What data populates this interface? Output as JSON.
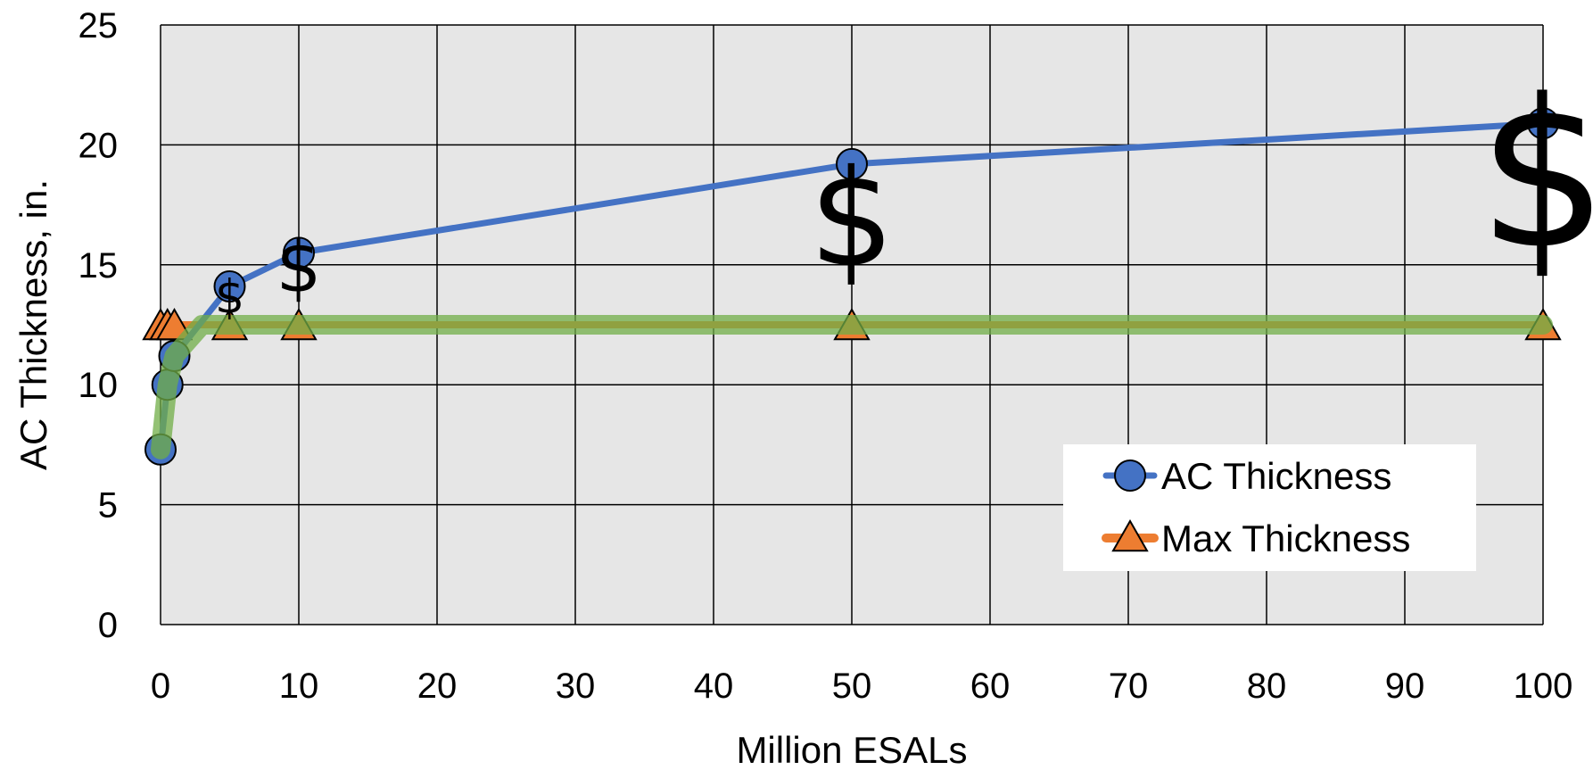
{
  "chart_data": {
    "type": "line",
    "xlabel": "Million ESALs",
    "ylabel": "AC Thickness, in.",
    "xlim": [
      0,
      100
    ],
    "ylim": [
      0,
      25
    ],
    "xticks": [
      "0",
      "10",
      "20",
      "30",
      "40",
      "50",
      "60",
      "70",
      "80",
      "90",
      "100"
    ],
    "yticks": [
      "0",
      "5",
      "10",
      "15",
      "20",
      "25"
    ],
    "grid": true,
    "legend_position": "lower-right",
    "series": [
      {
        "name": "AC Thickness",
        "color": "#4472C4",
        "marker": "circle",
        "x": [
          0,
          0.5,
          1,
          5,
          10,
          50,
          100
        ],
        "y": [
          7.3,
          10.0,
          11.2,
          14.1,
          15.5,
          19.2,
          20.9
        ]
      },
      {
        "name": "Max Thickness",
        "color": "#ED7D31",
        "marker": "triangle",
        "x": [
          0,
          0.5,
          1,
          5,
          10,
          50,
          100
        ],
        "y": [
          12.5,
          12.5,
          12.5,
          12.5,
          12.5,
          12.5,
          12.5
        ]
      },
      {
        "color": "#70AD47",
        "marker": "none",
        "x": [
          0,
          0.5,
          1,
          3,
          100
        ],
        "y": [
          7.3,
          10.0,
          11.2,
          12.5,
          12.5
        ]
      }
    ],
    "annotations": [
      {
        "text": "$",
        "x": 5,
        "y": 13.0,
        "scale": "small"
      },
      {
        "text": "$",
        "x": 10,
        "y": 13.9,
        "scale": "medium"
      },
      {
        "text": "$",
        "x": 50,
        "y": 15.0,
        "scale": "large"
      },
      {
        "text": "$",
        "x": 100,
        "y": 15.8,
        "scale": "xlarge"
      }
    ]
  }
}
